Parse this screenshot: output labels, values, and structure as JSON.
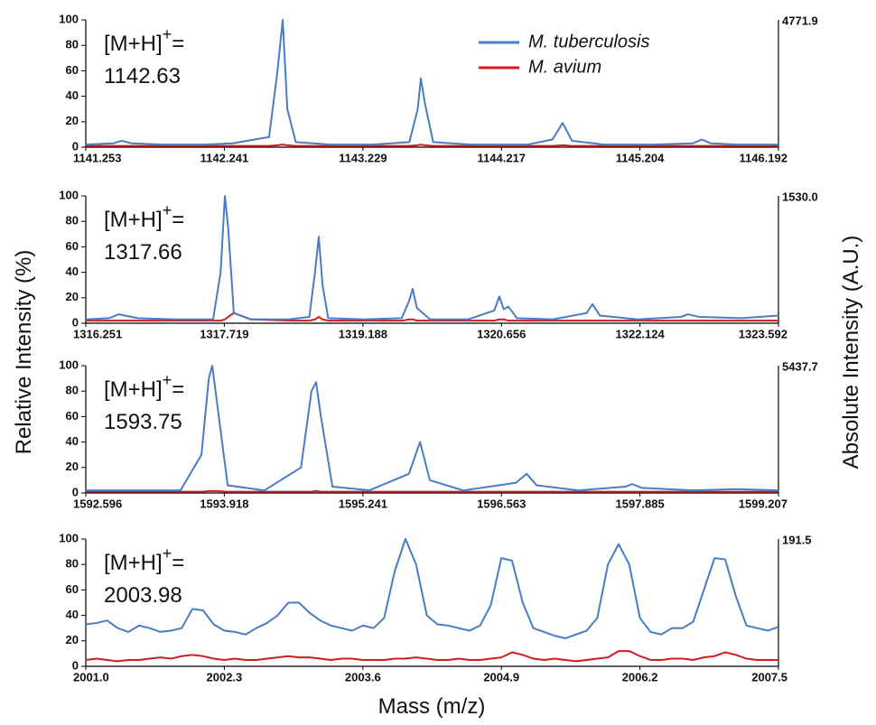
{
  "figure": {
    "y_label": "Relative Intensity (%)",
    "y2_label": "Absolute Intensity (A.U.)",
    "x_label": "Mass (m/z)"
  },
  "chart_data": [
    {
      "type": "line",
      "ylim": [
        0,
        100
      ],
      "yticks": [
        0,
        20,
        40,
        60,
        80,
        100
      ],
      "xlim": [
        1141.253,
        1146.192
      ],
      "xticks": [
        1141.253,
        1142.241,
        1143.229,
        1144.217,
        1145.204,
        1146.192
      ],
      "y2_max_label": "4771.9",
      "legend": "top-right",
      "annotation": {
        "ion": "[M+H]",
        "charge": "+",
        "sign": "=",
        "mz": 1142.63
      },
      "x": [
        1141.253,
        1141.45,
        1141.51,
        1141.58,
        1141.8,
        1142.1,
        1142.3,
        1142.56,
        1142.62,
        1142.657,
        1142.69,
        1142.75,
        1143.0,
        1143.3,
        1143.56,
        1143.62,
        1143.642,
        1143.67,
        1143.73,
        1144.0,
        1144.4,
        1144.58,
        1144.653,
        1144.72,
        1144.95,
        1145.3,
        1145.58,
        1145.645,
        1145.71,
        1145.9,
        1146.192
      ],
      "series": [
        {
          "name": "M. tuberculosis",
          "color": "#4a7cc4",
          "values": [
            2,
            3,
            5,
            3,
            2,
            2,
            3,
            8,
            60,
            100,
            30,
            4,
            2,
            2,
            4,
            30,
            54,
            35,
            4,
            2,
            2,
            6,
            19,
            5,
            2,
            2,
            3,
            6,
            3,
            2,
            2
          ]
        },
        {
          "name": "M. avium",
          "color": "#d41c1c",
          "values": [
            1,
            1,
            1,
            1,
            1,
            1,
            1,
            1,
            1.5,
            2,
            1.5,
            1,
            1,
            1,
            1,
            1.5,
            2,
            1.5,
            1,
            1,
            1,
            1,
            1.5,
            1,
            1,
            1,
            1,
            1,
            1,
            1,
            1
          ]
        }
      ]
    },
    {
      "type": "line",
      "ylim": [
        0,
        100
      ],
      "yticks": [
        0,
        20,
        40,
        60,
        80,
        100
      ],
      "xlim": [
        1316.251,
        1323.592
      ],
      "xticks": [
        1316.251,
        1317.719,
        1319.188,
        1320.656,
        1322.124,
        1323.592
      ],
      "y2_max_label": "1530.0",
      "annotation": {
        "ion": "[M+H]",
        "charge": "+",
        "sign": "=",
        "mz": 1317.66
      },
      "x": [
        1316.251,
        1316.5,
        1316.6,
        1316.8,
        1317.2,
        1317.6,
        1317.68,
        1317.725,
        1317.76,
        1317.82,
        1318.0,
        1318.4,
        1318.62,
        1318.68,
        1318.72,
        1318.76,
        1318.82,
        1319.2,
        1319.6,
        1319.68,
        1319.715,
        1319.76,
        1319.9,
        1320.3,
        1320.58,
        1320.634,
        1320.68,
        1320.73,
        1320.82,
        1321.2,
        1321.56,
        1321.62,
        1321.7,
        1322.1,
        1322.56,
        1322.63,
        1322.75,
        1323.2,
        1323.592
      ],
      "series": [
        {
          "color": "#4a7cc4",
          "values": [
            3,
            4,
            7,
            4,
            3,
            3,
            40,
            100,
            75,
            8,
            3,
            3,
            5,
            40,
            68,
            30,
            4,
            3,
            4,
            18,
            27,
            12,
            3,
            3,
            10,
            21,
            11,
            13,
            4,
            3,
            8,
            15,
            6,
            3,
            5,
            7,
            5,
            4,
            6
          ]
        },
        {
          "color": "#d41c1c",
          "values": [
            2,
            2,
            2,
            2,
            2,
            2,
            2,
            3,
            5,
            8,
            3,
            2,
            2,
            3,
            5,
            3,
            2,
            2,
            2,
            3,
            3,
            2,
            2,
            2,
            2,
            3,
            3,
            2,
            2,
            2,
            2,
            2,
            2,
            2,
            2,
            2,
            2,
            2,
            2
          ]
        }
      ]
    },
    {
      "type": "line",
      "ylim": [
        0,
        100
      ],
      "yticks": [
        0,
        20,
        40,
        60,
        80,
        100
      ],
      "xlim": [
        1592.596,
        1599.207
      ],
      "xticks": [
        1592.596,
        1593.918,
        1595.241,
        1596.563,
        1597.885,
        1599.207
      ],
      "y2_max_label": "5437.7",
      "annotation": {
        "ion": "[M+H]",
        "charge": "+",
        "sign": "=",
        "mz": 1593.75
      },
      "x": [
        1592.596,
        1593.0,
        1593.5,
        1593.7,
        1593.77,
        1593.803,
        1593.85,
        1593.95,
        1594.3,
        1594.65,
        1594.75,
        1594.794,
        1594.84,
        1594.95,
        1595.3,
        1595.68,
        1595.786,
        1595.88,
        1596.2,
        1596.7,
        1596.803,
        1596.9,
        1597.3,
        1597.75,
        1597.81,
        1597.9,
        1598.4,
        1598.8,
        1599.207
      ],
      "series": [
        {
          "color": "#4a7cc4",
          "values": [
            2,
            2,
            2,
            30,
            90,
            100,
            70,
            6,
            2,
            20,
            80,
            87,
            60,
            5,
            2,
            15,
            40,
            10,
            2,
            8,
            15,
            6,
            2,
            5,
            7,
            4,
            2,
            3,
            2
          ]
        },
        {
          "color": "#d41c1c",
          "values": [
            1,
            1,
            1,
            1,
            1.5,
            1.5,
            1.5,
            1,
            1,
            1,
            1,
            1.5,
            1,
            1,
            1,
            1,
            1,
            1,
            1,
            1,
            1,
            1,
            1,
            1,
            1,
            1,
            1,
            1,
            1
          ]
        }
      ]
    },
    {
      "type": "line",
      "ylim": [
        0,
        100
      ],
      "yticks": [
        0,
        20,
        40,
        60,
        80,
        100
      ],
      "xlim": [
        2001.0,
        2007.5
      ],
      "xticks": [
        {
          "value": 2001,
          "label": "2001.0"
        },
        2002.3,
        2003.6,
        2004.9,
        2006.2,
        {
          "value": 2007.5,
          "label": "2007.5"
        }
      ],
      "y2_max_label": "191.5",
      "annotation": {
        "ion": "[M+H]",
        "charge": "+",
        "sign": "=",
        "mz": 2003.98
      },
      "x": [
        2001.0,
        2001.1,
        2001.2,
        2001.3,
        2001.4,
        2001.5,
        2001.6,
        2001.7,
        2001.8,
        2001.9,
        2002.0,
        2002.1,
        2002.2,
        2002.3,
        2002.4,
        2002.5,
        2002.6,
        2002.7,
        2002.8,
        2002.9,
        2003.0,
        2003.1,
        2003.2,
        2003.3,
        2003.4,
        2003.5,
        2003.6,
        2003.7,
        2003.8,
        2003.9,
        2004.0,
        2004.1,
        2004.2,
        2004.3,
        2004.4,
        2004.5,
        2004.6,
        2004.7,
        2004.8,
        2004.9,
        2005.0,
        2005.1,
        2005.2,
        2005.3,
        2005.4,
        2005.5,
        2005.6,
        2005.7,
        2005.8,
        2005.9,
        2006.0,
        2006.1,
        2006.2,
        2006.3,
        2006.4,
        2006.5,
        2006.6,
        2006.7,
        2006.8,
        2006.9,
        2007.0,
        2007.1,
        2007.2,
        2007.3,
        2007.4,
        2007.5
      ],
      "series": [
        {
          "color": "#4a7cc4",
          "values": [
            33,
            34,
            36,
            30,
            27,
            32,
            30,
            27,
            28,
            30,
            45,
            44,
            33,
            28,
            27,
            25,
            30,
            34,
            40,
            50,
            50,
            42,
            36,
            32,
            30,
            28,
            32,
            30,
            38,
            75,
            100,
            80,
            40,
            33,
            32,
            30,
            28,
            32,
            48,
            85,
            83,
            50,
            30,
            27,
            24,
            22,
            25,
            28,
            38,
            80,
            96,
            80,
            38,
            27,
            25,
            30,
            30,
            35,
            60,
            85,
            84,
            55,
            32,
            30,
            28,
            31
          ]
        },
        {
          "color": "#d41c1c",
          "values": [
            5,
            6,
            5,
            4,
            5,
            5,
            6,
            7,
            6,
            8,
            9,
            8,
            6,
            5,
            6,
            5,
            5,
            6,
            7,
            8,
            7,
            7,
            6,
            5,
            6,
            6,
            5,
            5,
            5,
            6,
            6,
            7,
            6,
            5,
            5,
            6,
            5,
            5,
            6,
            7,
            11,
            9,
            6,
            5,
            6,
            5,
            4,
            5,
            6,
            7,
            12,
            12,
            8,
            5,
            5,
            6,
            6,
            5,
            7,
            8,
            11,
            9,
            6,
            5,
            5,
            5
          ]
        }
      ]
    }
  ]
}
